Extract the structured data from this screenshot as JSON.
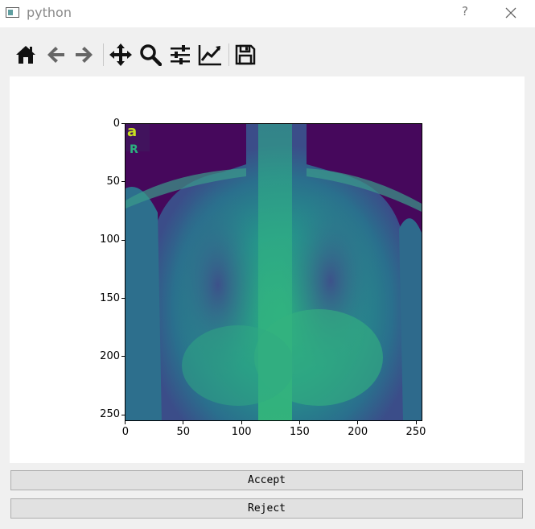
{
  "window": {
    "title": "python",
    "help": "?"
  },
  "toolbar": {
    "buttons": [
      "home-icon",
      "back-arrow-icon",
      "forward-arrow-icon",
      "pan-icon",
      "zoom-icon",
      "subplots-config-icon",
      "edit-axes-icon",
      "save-icon"
    ]
  },
  "figure": {
    "image": "chest x-ray (viridis colormap)",
    "overlay_letters": [
      "a",
      "R"
    ],
    "xticks": [
      "0",
      "50",
      "100",
      "150",
      "200",
      "250"
    ],
    "yticks": [
      "0",
      "50",
      "100",
      "150",
      "200",
      "250"
    ]
  },
  "buttons": {
    "accept": "Accept",
    "reject": "Reject"
  },
  "colors": {
    "viridis_dark": "#46085c",
    "viridis_mid": "#2f8a8c",
    "viridis_bright": "#2bb07f",
    "viridis_yellow": "#c8e020"
  }
}
